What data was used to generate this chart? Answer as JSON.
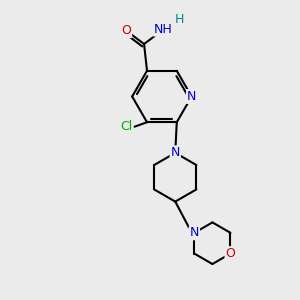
{
  "bg_color": "#ebebeb",
  "bond_color": "#000000",
  "bond_width": 1.5,
  "atom_colors": {
    "N": "#0000cc",
    "O": "#cc0000",
    "Cl": "#00aa00",
    "C": "#000000",
    "H": "#008888"
  },
  "font_size": 9
}
